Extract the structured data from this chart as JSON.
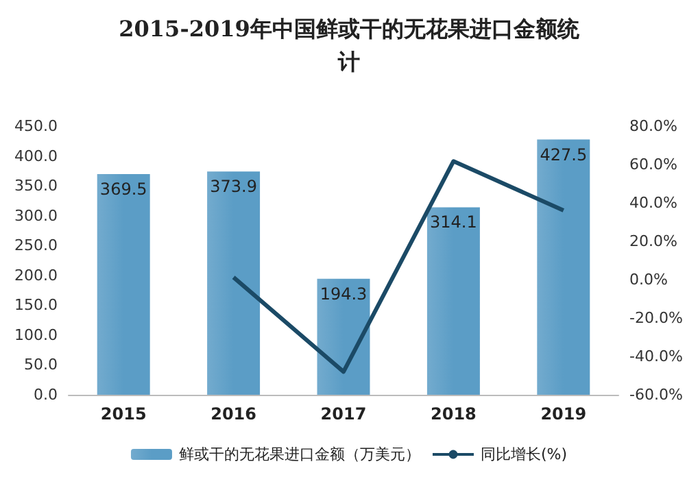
{
  "chart_data": {
    "type": "bar",
    "title": "2015-2019年中国鲜或干的无花果进口金额统计",
    "categories": [
      "2015",
      "2016",
      "2017",
      "2018",
      "2019"
    ],
    "series": [
      {
        "name": "鲜或干的无花果进口金额（万美元）",
        "color": "#5b9dc6",
        "values": [
          369.5,
          373.9,
          194.3,
          314.1,
          427.5
        ],
        "data_labels": true
      },
      {
        "name": "同比增长(%)",
        "type": "line",
        "axis": "y2",
        "color": "#1b4a66",
        "values": [
          null,
          1.2,
          -48.0,
          61.7,
          36.1
        ]
      }
    ],
    "ylim": [
      0,
      450
    ],
    "yticks": [
      {
        "value": 0,
        "label": "0.0"
      },
      {
        "value": 50,
        "label": "50.0"
      },
      {
        "value": 100,
        "label": "100.0"
      },
      {
        "value": 150,
        "label": "150.0"
      },
      {
        "value": 200,
        "label": "200.0"
      },
      {
        "value": 250,
        "label": "250.0"
      },
      {
        "value": 300,
        "label": "300.0"
      },
      {
        "value": 350,
        "label": "350.0"
      },
      {
        "value": 400,
        "label": "400.0"
      },
      {
        "value": 450,
        "label": "450.0"
      }
    ],
    "y2lim": [
      -60,
      80
    ],
    "y2ticks": [
      {
        "value": -60,
        "label": "-60.0%"
      },
      {
        "value": -40,
        "label": "-40.0%"
      },
      {
        "value": -20,
        "label": "-20.0%"
      },
      {
        "value": 0,
        "label": "0.0%"
      },
      {
        "value": 20,
        "label": "20.0%"
      },
      {
        "value": 40,
        "label": "40.0%"
      },
      {
        "value": 60,
        "label": "60.0%"
      },
      {
        "value": 80,
        "label": "80.0%"
      }
    ],
    "grid": false,
    "legend": "bottom",
    "marker": "none",
    "line_style": "solid"
  }
}
